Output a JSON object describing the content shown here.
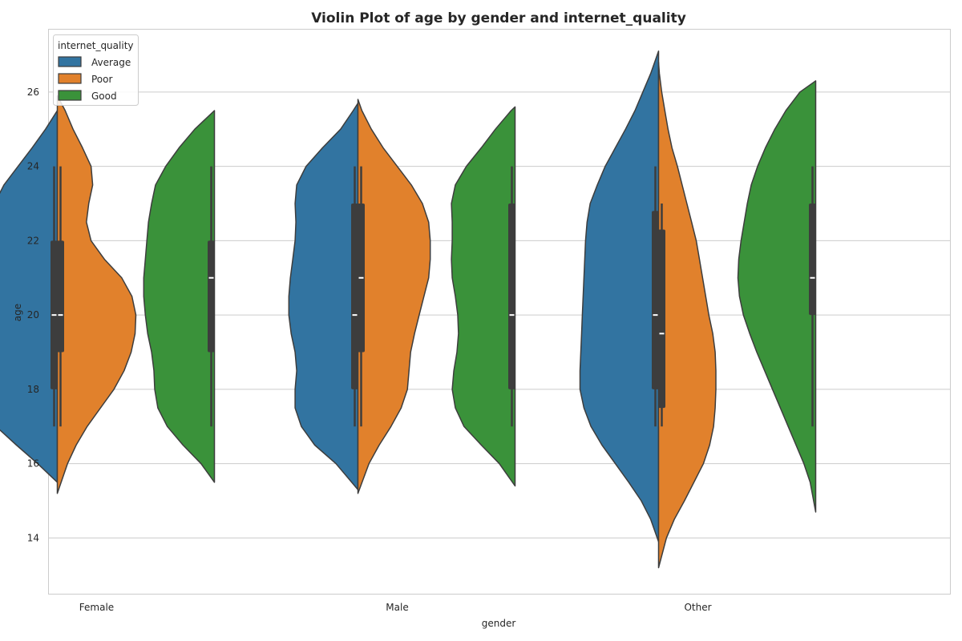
{
  "chart_data": {
    "type": "violin",
    "title": "Violin Plot of age by gender and internet_quality",
    "xlabel": "gender",
    "ylabel": "age",
    "ylim": [
      12.5,
      27.7
    ],
    "yticks": [
      14,
      16,
      18,
      20,
      22,
      24,
      26
    ],
    "grid": true,
    "legend_position": "top-left",
    "legend_title": "internet_quality",
    "categories": [
      "Female",
      "Male",
      "Other"
    ],
    "series": [
      {
        "name": "Average",
        "color": "#3274a1"
      },
      {
        "name": "Poor",
        "color": "#e1812c"
      },
      {
        "name": "Good",
        "color": "#3a923a"
      }
    ],
    "violins": [
      {
        "category": "Female",
        "series": "Average",
        "side": "left",
        "min": 15.5,
        "max": 25.5,
        "q1": 18,
        "median": 20,
        "q3": 22,
        "whisker_low": 17,
        "whisker_high": 24,
        "profile": [
          [
            15.5,
            0.0
          ],
          [
            16.0,
            0.25
          ],
          [
            16.5,
            0.52
          ],
          [
            17.0,
            0.78
          ],
          [
            17.5,
            0.88
          ],
          [
            18.0,
            0.8
          ],
          [
            18.5,
            0.84
          ],
          [
            19.0,
            0.92
          ],
          [
            19.5,
            1.0
          ],
          [
            20.0,
            1.0
          ],
          [
            20.5,
            0.95
          ],
          [
            21.0,
            0.9
          ],
          [
            21.5,
            0.88
          ],
          [
            22.0,
            0.87
          ],
          [
            22.5,
            0.86
          ],
          [
            23.0,
            0.8
          ],
          [
            23.5,
            0.68
          ],
          [
            24.0,
            0.5
          ],
          [
            24.5,
            0.32
          ],
          [
            25.0,
            0.15
          ],
          [
            25.5,
            0.0
          ]
        ]
      },
      {
        "category": "Female",
        "series": "Poor",
        "side": "right",
        "min": 15.2,
        "max": 25.9,
        "q1": 19,
        "median": 20,
        "q3": 22,
        "whisker_low": 17,
        "whisker_high": 24,
        "profile": [
          [
            15.2,
            0.0
          ],
          [
            16.0,
            0.13
          ],
          [
            16.5,
            0.24
          ],
          [
            17.0,
            0.38
          ],
          [
            17.5,
            0.55
          ],
          [
            18.0,
            0.72
          ],
          [
            18.5,
            0.85
          ],
          [
            19.0,
            0.94
          ],
          [
            19.5,
            0.99
          ],
          [
            20.0,
            1.0
          ],
          [
            20.5,
            0.95
          ],
          [
            21.0,
            0.82
          ],
          [
            21.5,
            0.6
          ],
          [
            22.0,
            0.43
          ],
          [
            22.5,
            0.37
          ],
          [
            23.0,
            0.4
          ],
          [
            23.5,
            0.45
          ],
          [
            24.0,
            0.43
          ],
          [
            24.5,
            0.32
          ],
          [
            25.0,
            0.2
          ],
          [
            25.5,
            0.1
          ],
          [
            25.9,
            0.0
          ]
        ]
      },
      {
        "category": "Female",
        "series": "Good",
        "side": "left",
        "min": 15.5,
        "max": 25.5,
        "q1": 19,
        "median": 21,
        "q3": 22,
        "whisker_low": 17,
        "whisker_high": 24,
        "profile": [
          [
            15.5,
            0.0
          ],
          [
            16.0,
            0.17
          ],
          [
            16.5,
            0.4
          ],
          [
            17.0,
            0.6
          ],
          [
            17.5,
            0.72
          ],
          [
            18.0,
            0.76
          ],
          [
            18.5,
            0.77
          ],
          [
            19.0,
            0.8
          ],
          [
            19.5,
            0.85
          ],
          [
            20.0,
            0.88
          ],
          [
            20.5,
            0.9
          ],
          [
            21.0,
            0.9
          ],
          [
            21.5,
            0.88
          ],
          [
            22.0,
            0.86
          ],
          [
            22.5,
            0.84
          ],
          [
            23.0,
            0.8
          ],
          [
            23.5,
            0.75
          ],
          [
            24.0,
            0.62
          ],
          [
            24.5,
            0.45
          ],
          [
            25.0,
            0.25
          ],
          [
            25.5,
            0.0
          ]
        ]
      },
      {
        "category": "Male",
        "series": "Average",
        "side": "left",
        "min": 15.3,
        "max": 25.7,
        "q1": 18,
        "median": 20,
        "q3": 23,
        "whisker_low": 17,
        "whisker_high": 24,
        "profile": [
          [
            15.3,
            0.0
          ],
          [
            16.0,
            0.28
          ],
          [
            16.5,
            0.55
          ],
          [
            17.0,
            0.72
          ],
          [
            17.5,
            0.8
          ],
          [
            18.0,
            0.8
          ],
          [
            18.5,
            0.78
          ],
          [
            19.0,
            0.8
          ],
          [
            19.5,
            0.85
          ],
          [
            20.0,
            0.88
          ],
          [
            20.5,
            0.88
          ],
          [
            21.0,
            0.86
          ],
          [
            21.5,
            0.83
          ],
          [
            22.0,
            0.8
          ],
          [
            22.5,
            0.79
          ],
          [
            23.0,
            0.8
          ],
          [
            23.5,
            0.78
          ],
          [
            24.0,
            0.66
          ],
          [
            24.5,
            0.45
          ],
          [
            25.0,
            0.22
          ],
          [
            25.5,
            0.06
          ],
          [
            25.7,
            0.0
          ]
        ]
      },
      {
        "category": "Male",
        "series": "Poor",
        "side": "right",
        "min": 15.2,
        "max": 25.8,
        "q1": 19,
        "median": 21,
        "q3": 23,
        "whisker_low": 17,
        "whisker_high": 24,
        "profile": [
          [
            15.2,
            0.0
          ],
          [
            16.0,
            0.14
          ],
          [
            16.5,
            0.27
          ],
          [
            17.0,
            0.42
          ],
          [
            17.5,
            0.55
          ],
          [
            18.0,
            0.63
          ],
          [
            18.5,
            0.65
          ],
          [
            19.0,
            0.67
          ],
          [
            19.5,
            0.72
          ],
          [
            20.0,
            0.78
          ],
          [
            20.5,
            0.84
          ],
          [
            21.0,
            0.9
          ],
          [
            21.5,
            0.92
          ],
          [
            22.0,
            0.92
          ],
          [
            22.5,
            0.9
          ],
          [
            23.0,
            0.82
          ],
          [
            23.5,
            0.68
          ],
          [
            24.0,
            0.5
          ],
          [
            24.5,
            0.32
          ],
          [
            25.0,
            0.17
          ],
          [
            25.5,
            0.05
          ],
          [
            25.8,
            0.0
          ]
        ]
      },
      {
        "category": "Male",
        "series": "Good",
        "side": "left",
        "min": 15.4,
        "max": 25.6,
        "q1": 18,
        "median": 20,
        "q3": 23,
        "whisker_low": 17,
        "whisker_high": 24,
        "profile": [
          [
            15.4,
            0.0
          ],
          [
            16.0,
            0.2
          ],
          [
            16.5,
            0.43
          ],
          [
            17.0,
            0.65
          ],
          [
            17.5,
            0.76
          ],
          [
            18.0,
            0.8
          ],
          [
            18.5,
            0.78
          ],
          [
            19.0,
            0.74
          ],
          [
            19.5,
            0.72
          ],
          [
            20.0,
            0.73
          ],
          [
            20.5,
            0.76
          ],
          [
            21.0,
            0.8
          ],
          [
            21.5,
            0.81
          ],
          [
            22.0,
            0.8
          ],
          [
            22.5,
            0.8
          ],
          [
            23.0,
            0.81
          ],
          [
            23.5,
            0.76
          ],
          [
            24.0,
            0.62
          ],
          [
            24.5,
            0.43
          ],
          [
            25.0,
            0.25
          ],
          [
            25.5,
            0.05
          ],
          [
            25.6,
            0.0
          ]
        ]
      },
      {
        "category": "Other",
        "series": "Average",
        "side": "left",
        "min": 13.9,
        "max": 27.1,
        "q1": 18,
        "median": 20,
        "q3": 22.8,
        "whisker_low": 17,
        "whisker_high": 24,
        "profile": [
          [
            13.9,
            0.0
          ],
          [
            14.5,
            0.1
          ],
          [
            15.0,
            0.22
          ],
          [
            15.5,
            0.38
          ],
          [
            16.0,
            0.55
          ],
          [
            16.5,
            0.72
          ],
          [
            17.0,
            0.86
          ],
          [
            17.5,
            0.95
          ],
          [
            18.0,
            1.0
          ],
          [
            18.5,
            1.0
          ],
          [
            19.0,
            0.99
          ],
          [
            19.5,
            0.98
          ],
          [
            20.0,
            0.97
          ],
          [
            20.5,
            0.96
          ],
          [
            21.0,
            0.95
          ],
          [
            21.5,
            0.94
          ],
          [
            22.0,
            0.93
          ],
          [
            22.5,
            0.91
          ],
          [
            23.0,
            0.87
          ],
          [
            23.5,
            0.78
          ],
          [
            24.0,
            0.68
          ],
          [
            24.5,
            0.55
          ],
          [
            25.0,
            0.42
          ],
          [
            25.5,
            0.3
          ],
          [
            26.0,
            0.2
          ],
          [
            26.5,
            0.1
          ],
          [
            27.1,
            0.0
          ]
        ]
      },
      {
        "category": "Other",
        "series": "Poor",
        "side": "right",
        "min": 13.2,
        "max": 26.8,
        "q1": 17.5,
        "median": 19.5,
        "q3": 22.3,
        "whisker_low": 17,
        "whisker_high": 23,
        "profile": [
          [
            13.2,
            0.0
          ],
          [
            14.0,
            0.1
          ],
          [
            14.5,
            0.2
          ],
          [
            15.0,
            0.33
          ],
          [
            15.5,
            0.45
          ],
          [
            16.0,
            0.57
          ],
          [
            16.5,
            0.65
          ],
          [
            17.0,
            0.7
          ],
          [
            17.5,
            0.72
          ],
          [
            18.0,
            0.73
          ],
          [
            18.5,
            0.73
          ],
          [
            19.0,
            0.72
          ],
          [
            19.5,
            0.69
          ],
          [
            20.0,
            0.64
          ],
          [
            20.5,
            0.6
          ],
          [
            21.0,
            0.56
          ],
          [
            21.5,
            0.52
          ],
          [
            22.0,
            0.48
          ],
          [
            22.5,
            0.42
          ],
          [
            23.0,
            0.36
          ],
          [
            23.5,
            0.3
          ],
          [
            24.0,
            0.24
          ],
          [
            24.5,
            0.17
          ],
          [
            25.0,
            0.12
          ],
          [
            25.5,
            0.08
          ],
          [
            26.0,
            0.04
          ],
          [
            26.5,
            0.01
          ],
          [
            26.8,
            0.0
          ]
        ]
      },
      {
        "category": "Other",
        "series": "Good",
        "side": "left",
        "min": 14.7,
        "max": 26.3,
        "q1": 20,
        "median": 21,
        "q3": 23,
        "whisker_low": 17,
        "whisker_high": 24,
        "profile": [
          [
            14.7,
            0.0
          ],
          [
            15.5,
            0.07
          ],
          [
            16.0,
            0.15
          ],
          [
            16.5,
            0.25
          ],
          [
            17.0,
            0.35
          ],
          [
            17.5,
            0.45
          ],
          [
            18.0,
            0.55
          ],
          [
            18.5,
            0.65
          ],
          [
            19.0,
            0.75
          ],
          [
            19.5,
            0.84
          ],
          [
            20.0,
            0.92
          ],
          [
            20.5,
            0.97
          ],
          [
            21.0,
            0.99
          ],
          [
            21.5,
            0.98
          ],
          [
            22.0,
            0.95
          ],
          [
            22.5,
            0.91
          ],
          [
            23.0,
            0.87
          ],
          [
            23.5,
            0.82
          ],
          [
            24.0,
            0.74
          ],
          [
            24.5,
            0.64
          ],
          [
            25.0,
            0.52
          ],
          [
            25.5,
            0.38
          ],
          [
            26.0,
            0.2
          ],
          [
            26.3,
            0.0
          ]
        ]
      }
    ]
  }
}
